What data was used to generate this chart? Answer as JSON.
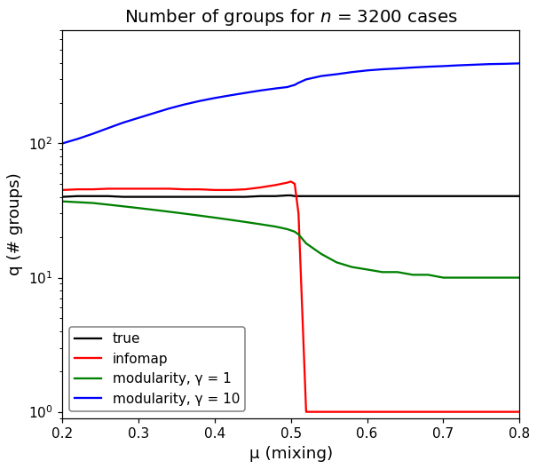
{
  "title": "Number of groups for $n$ = 3200 cases",
  "xlabel": "μ (mixing)",
  "ylabel": "q (# groups)",
  "xlim": [
    0.2,
    0.8
  ],
  "ylim_log": [
    0.9,
    700
  ],
  "mu": [
    0.2,
    0.22,
    0.24,
    0.26,
    0.28,
    0.3,
    0.32,
    0.34,
    0.36,
    0.38,
    0.4,
    0.42,
    0.44,
    0.46,
    0.48,
    0.495,
    0.5,
    0.505,
    0.51,
    0.52,
    0.54,
    0.56,
    0.58,
    0.6,
    0.62,
    0.64,
    0.66,
    0.68,
    0.7,
    0.72,
    0.74,
    0.76,
    0.78,
    0.8
  ],
  "true": [
    40,
    40.5,
    40.5,
    40.5,
    40,
    40,
    40,
    40,
    40,
    40,
    40,
    40,
    40,
    40.5,
    40.5,
    41,
    41,
    40.5,
    40.5,
    40.5,
    40.5,
    40.5,
    40.5,
    40.5,
    40.5,
    40.5,
    40.5,
    40.5,
    40.5,
    40.5,
    40.5,
    40.5,
    40.5,
    40.5
  ],
  "infomap": [
    45,
    45.5,
    45.5,
    46,
    46,
    46,
    46,
    46,
    45.5,
    45.5,
    45,
    45,
    45.5,
    47,
    49,
    51,
    52,
    50,
    30,
    1.0,
    1.0,
    1.0,
    1.0,
    1.0,
    1.0,
    1.0,
    1.0,
    1.0,
    1.0,
    1.0,
    1.0,
    1.0,
    1.0,
    1.0
  ],
  "modularity_1": [
    37,
    36.5,
    36,
    35,
    34,
    33,
    32,
    31,
    30,
    29,
    28,
    27,
    26,
    25,
    24,
    23,
    22.5,
    22,
    21,
    18,
    15,
    13,
    12,
    11.5,
    11,
    11,
    10.5,
    10.5,
    10,
    10,
    10,
    10,
    10,
    10
  ],
  "modularity_10": [
    100,
    108,
    118,
    130,
    143,
    155,
    168,
    182,
    195,
    207,
    218,
    228,
    238,
    248,
    257,
    263,
    268,
    273,
    283,
    300,
    318,
    328,
    340,
    350,
    357,
    362,
    368,
    373,
    377,
    382,
    386,
    390,
    392,
    395
  ],
  "colors": {
    "true": "#000000",
    "infomap": "#ff0000",
    "modularity_1": "#008000",
    "modularity_10": "#0000ff"
  },
  "legend_labels": {
    "true": "true",
    "infomap": "infomap",
    "modularity_1": "modularity, γ = 1",
    "modularity_10": "modularity, γ = 10"
  },
  "figsize": [
    5.5,
    4.8
  ],
  "dpi": 110
}
